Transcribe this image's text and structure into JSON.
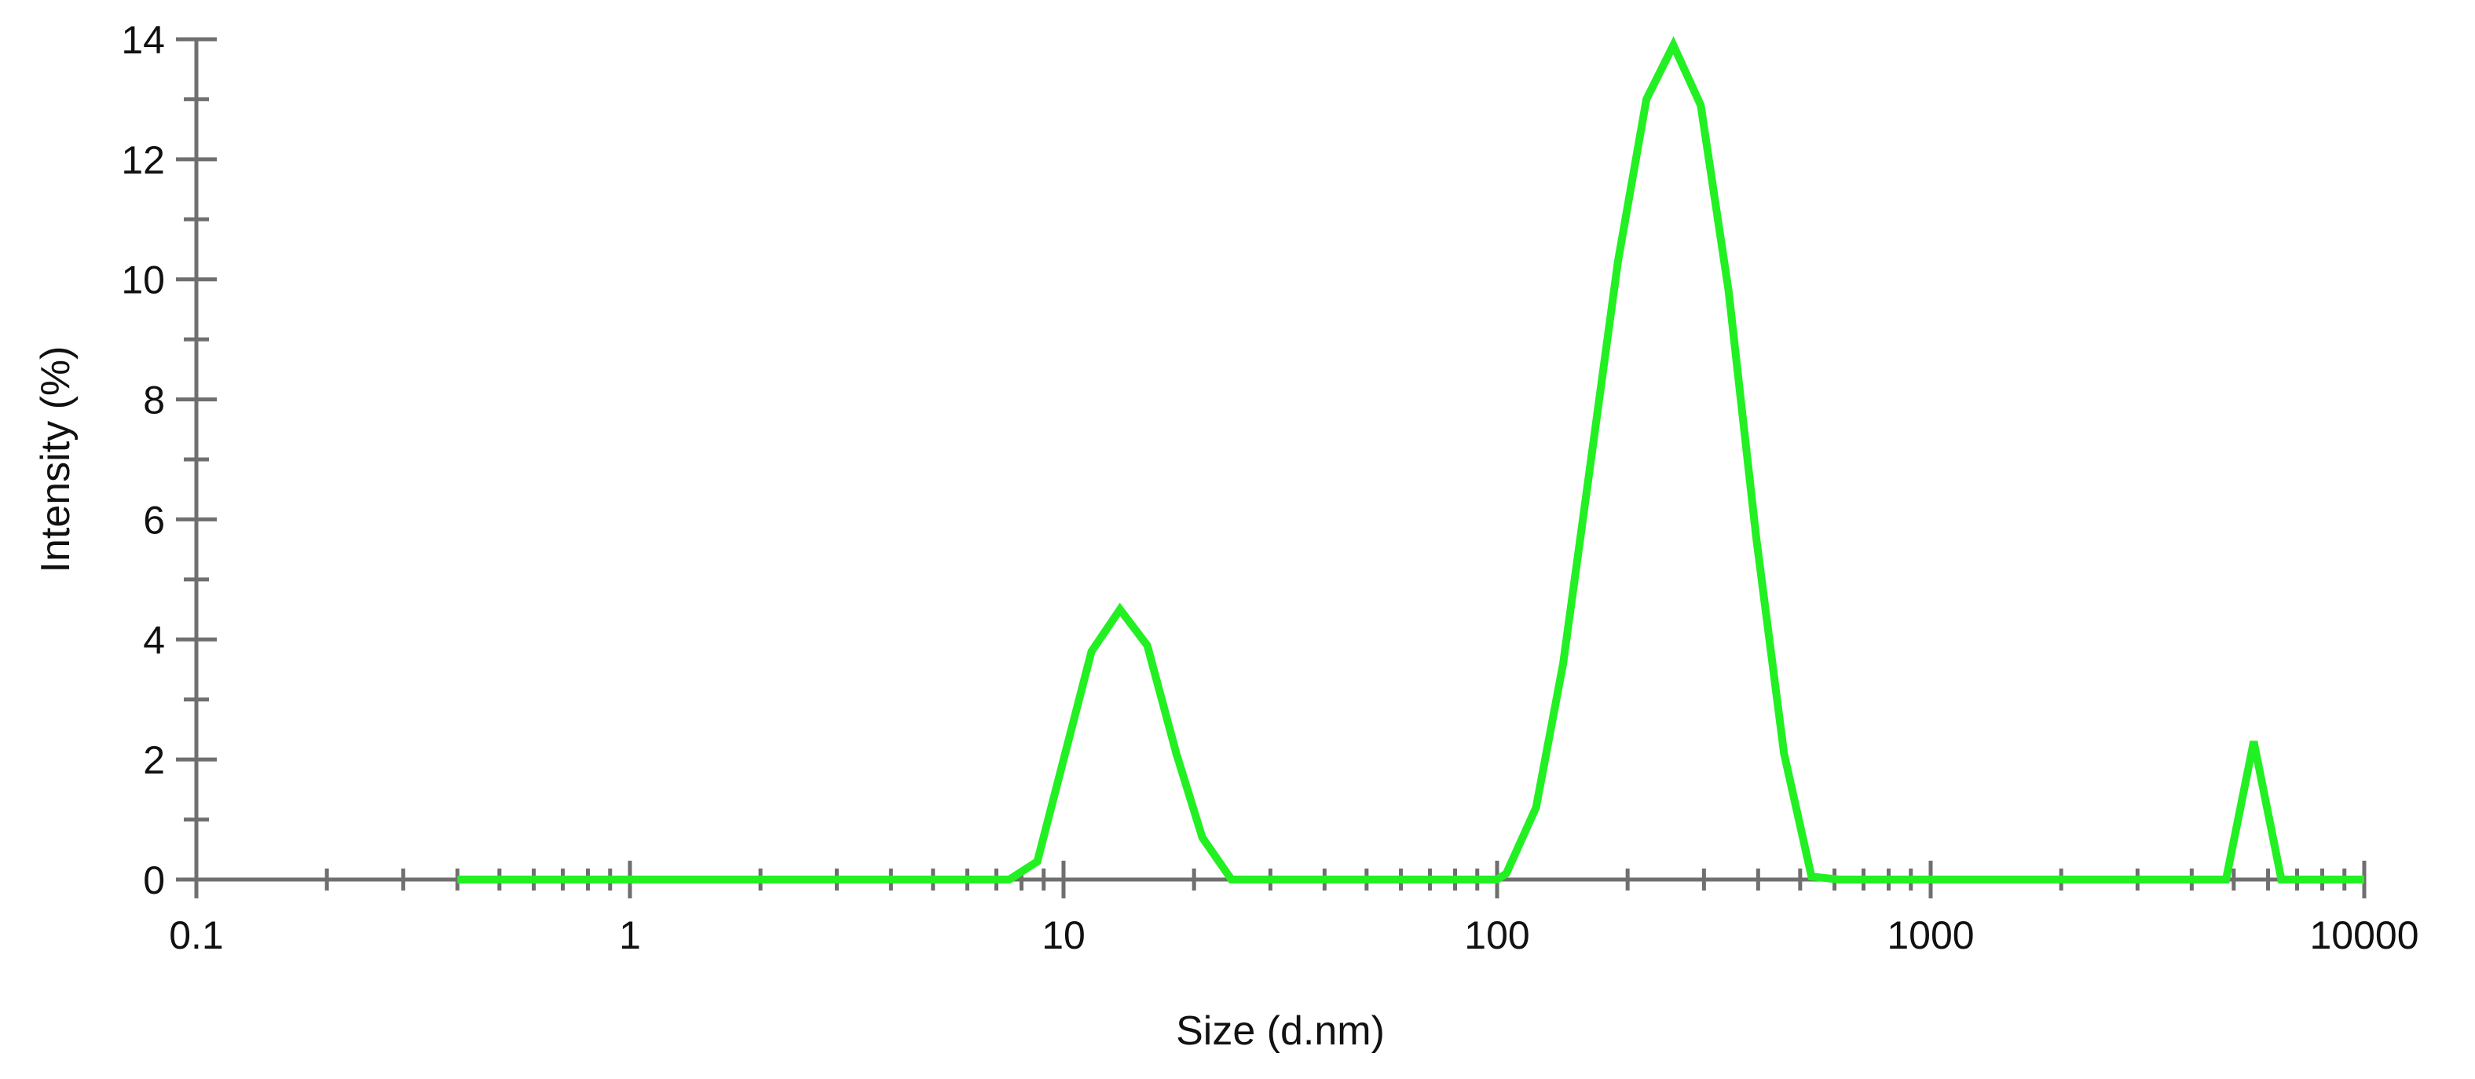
{
  "chart_data": {
    "type": "line",
    "title": "",
    "xlabel": "Size (d.nm)",
    "ylabel": "Intensity (%)",
    "xscale": "log",
    "xlim": [
      0.1,
      10000
    ],
    "ylim": [
      0,
      14
    ],
    "x_tick_labels": [
      "0.1",
      "1",
      "10",
      "100",
      "1000",
      "10000"
    ],
    "y_tick_labels": [
      "0",
      "2",
      "4",
      "6",
      "8",
      "10",
      "12",
      "14"
    ],
    "grid": false,
    "legend": "none",
    "series": [
      {
        "color": "#22f022",
        "x": [
          0.4,
          7.5,
          8.7,
          11.6,
          13.5,
          15.6,
          18.2,
          20.9,
          24.4,
          100,
          105,
          123,
          142,
          164,
          190,
          221,
          255,
          295,
          342,
          396,
          459,
          531,
          615,
          4800,
          5560,
          6440,
          10000
        ],
        "y": [
          0,
          0,
          0.3,
          3.8,
          4.5,
          3.9,
          2.1,
          0.7,
          0,
          0,
          0.1,
          1.2,
          3.6,
          6.9,
          10.3,
          13,
          13.9,
          12.9,
          9.8,
          5.7,
          2.1,
          0.05,
          0,
          0,
          2.3,
          0,
          0
        ]
      }
    ]
  }
}
